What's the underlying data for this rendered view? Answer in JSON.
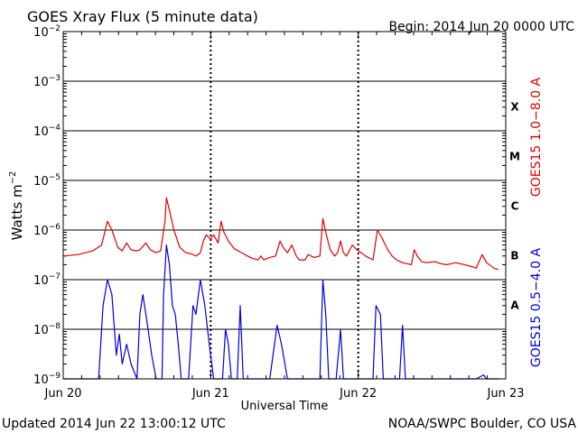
{
  "header": {
    "title": "GOES Xray Flux (5 minute data)",
    "begin": "Begin:  2014 Jun 20 0000 UTC"
  },
  "footer": {
    "updated": "Updated 2014 Jun 22 13:00:12 UTC",
    "credit": "NOAA/SWPC Boulder, CO USA"
  },
  "colors": {
    "long_channel": "#e00000",
    "short_channel": "#0000e0"
  },
  "chart_data": {
    "type": "line",
    "title": "GOES Xray Flux (5 minute data)",
    "xlabel": "Universal Time",
    "ylabel_base": "Watts m",
    "ylabel_exp": "−2",
    "y_scale": "log",
    "ylim": [
      1e-09,
      0.01
    ],
    "xlim_days": [
      0,
      3
    ],
    "x_ticks": [
      {
        "day": 0,
        "label": "Jun 20"
      },
      {
        "day": 1,
        "label": "Jun 21"
      },
      {
        "day": 2,
        "label": "Jun 22"
      },
      {
        "day": 3,
        "label": "Jun 23"
      }
    ],
    "y_ticks": [
      {
        "exp": -9,
        "base": "10",
        "sup": "−9"
      },
      {
        "exp": -8,
        "base": "10",
        "sup": "−8"
      },
      {
        "exp": -7,
        "base": "10",
        "sup": "−7"
      },
      {
        "exp": -6,
        "base": "10",
        "sup": "−6"
      },
      {
        "exp": -5,
        "base": "10",
        "sup": "−5"
      },
      {
        "exp": -4,
        "base": "10",
        "sup": "−4"
      },
      {
        "exp": -3,
        "base": "10",
        "sup": "−3"
      },
      {
        "exp": -2,
        "base": "10",
        "sup": "−2"
      }
    ],
    "flare_classes": [
      {
        "label": "A",
        "exp": -7.5
      },
      {
        "label": "B",
        "exp": -6.5
      },
      {
        "label": "C",
        "exp": -5.5
      },
      {
        "label": "M",
        "exp": -4.5
      },
      {
        "label": "X",
        "exp": -3.5
      }
    ],
    "grid": true,
    "series": [
      {
        "name": "GOES15 1.0−8.0 A",
        "color": "#e00000",
        "points": [
          [
            0.0,
            3e-07
          ],
          [
            0.1,
            3.2e-07
          ],
          [
            0.2,
            3.8e-07
          ],
          [
            0.26,
            5e-07
          ],
          [
            0.3,
            1.5e-06
          ],
          [
            0.33,
            1e-06
          ],
          [
            0.37,
            4.5e-07
          ],
          [
            0.4,
            3.8e-07
          ],
          [
            0.43,
            5.5e-07
          ],
          [
            0.46,
            4e-07
          ],
          [
            0.5,
            3.8e-07
          ],
          [
            0.52,
            4e-07
          ],
          [
            0.56,
            5.5e-07
          ],
          [
            0.59,
            4e-07
          ],
          [
            0.63,
            3.5e-07
          ],
          [
            0.66,
            3.8e-07
          ],
          [
            0.69,
            1.5e-06
          ],
          [
            0.7,
            4.5e-06
          ],
          [
            0.72,
            2.5e-06
          ],
          [
            0.75,
            1e-06
          ],
          [
            0.79,
            4.5e-07
          ],
          [
            0.83,
            3.5e-07
          ],
          [
            0.87,
            3.3e-07
          ],
          [
            0.9,
            3e-07
          ],
          [
            0.93,
            3.5e-07
          ],
          [
            0.95,
            6e-07
          ],
          [
            0.97,
            8e-07
          ],
          [
            1.0,
            6.5e-07
          ],
          [
            1.02,
            8e-07
          ],
          [
            1.05,
            5.5e-07
          ],
          [
            1.07,
            1.5e-06
          ],
          [
            1.09,
            9e-07
          ],
          [
            1.12,
            6e-07
          ],
          [
            1.16,
            4.2e-07
          ],
          [
            1.2,
            3.6e-07
          ],
          [
            1.25,
            3e-07
          ],
          [
            1.28,
            2.7e-07
          ],
          [
            1.32,
            2.5e-07
          ],
          [
            1.34,
            3e-07
          ],
          [
            1.36,
            2.5e-07
          ],
          [
            1.4,
            2.8e-07
          ],
          [
            1.44,
            3e-07
          ],
          [
            1.47,
            6e-07
          ],
          [
            1.49,
            4.5e-07
          ],
          [
            1.52,
            3.5e-07
          ],
          [
            1.55,
            5e-07
          ],
          [
            1.58,
            3e-07
          ],
          [
            1.6,
            2.5e-07
          ],
          [
            1.64,
            2.5e-07
          ],
          [
            1.66,
            3.2e-07
          ],
          [
            1.7,
            2.8e-07
          ],
          [
            1.74,
            3e-07
          ],
          [
            1.76,
            1.7e-06
          ],
          [
            1.78,
            9e-07
          ],
          [
            1.81,
            4e-07
          ],
          [
            1.84,
            3e-07
          ],
          [
            1.86,
            3.5e-07
          ],
          [
            1.88,
            6e-07
          ],
          [
            1.9,
            3.5e-07
          ],
          [
            1.92,
            3e-07
          ],
          [
            1.96,
            5e-07
          ],
          [
            1.99,
            4e-07
          ],
          [
            2.02,
            3.5e-07
          ],
          [
            2.05,
            3e-07
          ],
          [
            2.1,
            2.5e-07
          ],
          [
            2.13,
            1e-06
          ],
          [
            2.16,
            7e-07
          ],
          [
            2.2,
            4e-07
          ],
          [
            2.23,
            3e-07
          ],
          [
            2.26,
            2.5e-07
          ],
          [
            2.3,
            2.2e-07
          ],
          [
            2.36,
            2e-07
          ],
          [
            2.38,
            4e-07
          ],
          [
            2.4,
            3e-07
          ],
          [
            2.43,
            2.3e-07
          ],
          [
            2.46,
            2.2e-07
          ],
          [
            2.52,
            2.3e-07
          ],
          [
            2.56,
            2.1e-07
          ],
          [
            2.6,
            2e-07
          ],
          [
            2.66,
            2.2e-07
          ],
          [
            2.72,
            2e-07
          ],
          [
            2.78,
            1.8e-07
          ],
          [
            2.8,
            1.7e-07
          ],
          [
            2.84,
            3.2e-07
          ],
          [
            2.87,
            2.2e-07
          ],
          [
            2.92,
            1.7e-07
          ],
          [
            2.95,
            1.6e-07
          ]
        ]
      },
      {
        "name": "GOES15 0.5−4.0 A",
        "color": "#0000e0",
        "points": [
          [
            0.0,
            1e-09
          ],
          [
            0.24,
            1e-09
          ],
          [
            0.27,
            3e-08
          ],
          [
            0.3,
            1e-07
          ],
          [
            0.33,
            5e-08
          ],
          [
            0.36,
            3e-09
          ],
          [
            0.38,
            8e-09
          ],
          [
            0.4,
            2e-09
          ],
          [
            0.43,
            5e-09
          ],
          [
            0.46,
            2e-09
          ],
          [
            0.5,
            1e-09
          ],
          [
            0.52,
            2e-08
          ],
          [
            0.54,
            5e-08
          ],
          [
            0.56,
            2e-08
          ],
          [
            0.58,
            8e-09
          ],
          [
            0.6,
            3e-09
          ],
          [
            0.63,
            1e-09
          ],
          [
            0.67,
            1e-09
          ],
          [
            0.68,
            5e-08
          ],
          [
            0.7,
            5e-07
          ],
          [
            0.72,
            2e-07
          ],
          [
            0.74,
            3e-08
          ],
          [
            0.76,
            2e-08
          ],
          [
            0.78,
            5e-09
          ],
          [
            0.8,
            1e-09
          ],
          [
            0.85,
            1e-09
          ],
          [
            0.88,
            3e-08
          ],
          [
            0.9,
            2e-08
          ],
          [
            0.93,
            1e-07
          ],
          [
            0.96,
            3e-08
          ],
          [
            0.99,
            5e-09
          ],
          [
            1.02,
            1e-09
          ],
          [
            1.08,
            1e-09
          ],
          [
            1.1,
            1e-08
          ],
          [
            1.12,
            5e-09
          ],
          [
            1.14,
            1e-09
          ],
          [
            1.18,
            1e-09
          ],
          [
            1.2,
            3e-08
          ],
          [
            1.22,
            1e-09
          ],
          [
            1.4,
            1e-09
          ],
          [
            1.45,
            1.2e-08
          ],
          [
            1.48,
            5e-09
          ],
          [
            1.52,
            1e-09
          ],
          [
            1.6,
            1e-09
          ],
          [
            1.64,
            1e-09
          ],
          [
            1.7,
            1e-09
          ],
          [
            1.74,
            1e-09
          ],
          [
            1.76,
            1e-07
          ],
          [
            1.78,
            2e-08
          ],
          [
            1.8,
            1e-09
          ],
          [
            1.85,
            1e-09
          ],
          [
            1.88,
            1e-08
          ],
          [
            1.9,
            1e-09
          ],
          [
            1.95,
            1e-09
          ],
          [
            1.98,
            1e-09
          ],
          [
            2.0,
            1e-09
          ],
          [
            2.05,
            1e-09
          ],
          [
            2.1,
            1e-09
          ],
          [
            2.12,
            3e-08
          ],
          [
            2.15,
            2e-08
          ],
          [
            2.17,
            1e-09
          ],
          [
            2.2,
            1e-09
          ],
          [
            2.28,
            1e-09
          ],
          [
            2.3,
            1.2e-08
          ],
          [
            2.32,
            1e-09
          ],
          [
            2.5,
            1e-09
          ],
          [
            2.6,
            1e-09
          ],
          [
            2.8,
            1e-09
          ],
          [
            2.85,
            1.2e-09
          ],
          [
            2.87,
            1e-09
          ],
          [
            2.95,
            1e-09
          ]
        ]
      }
    ]
  }
}
